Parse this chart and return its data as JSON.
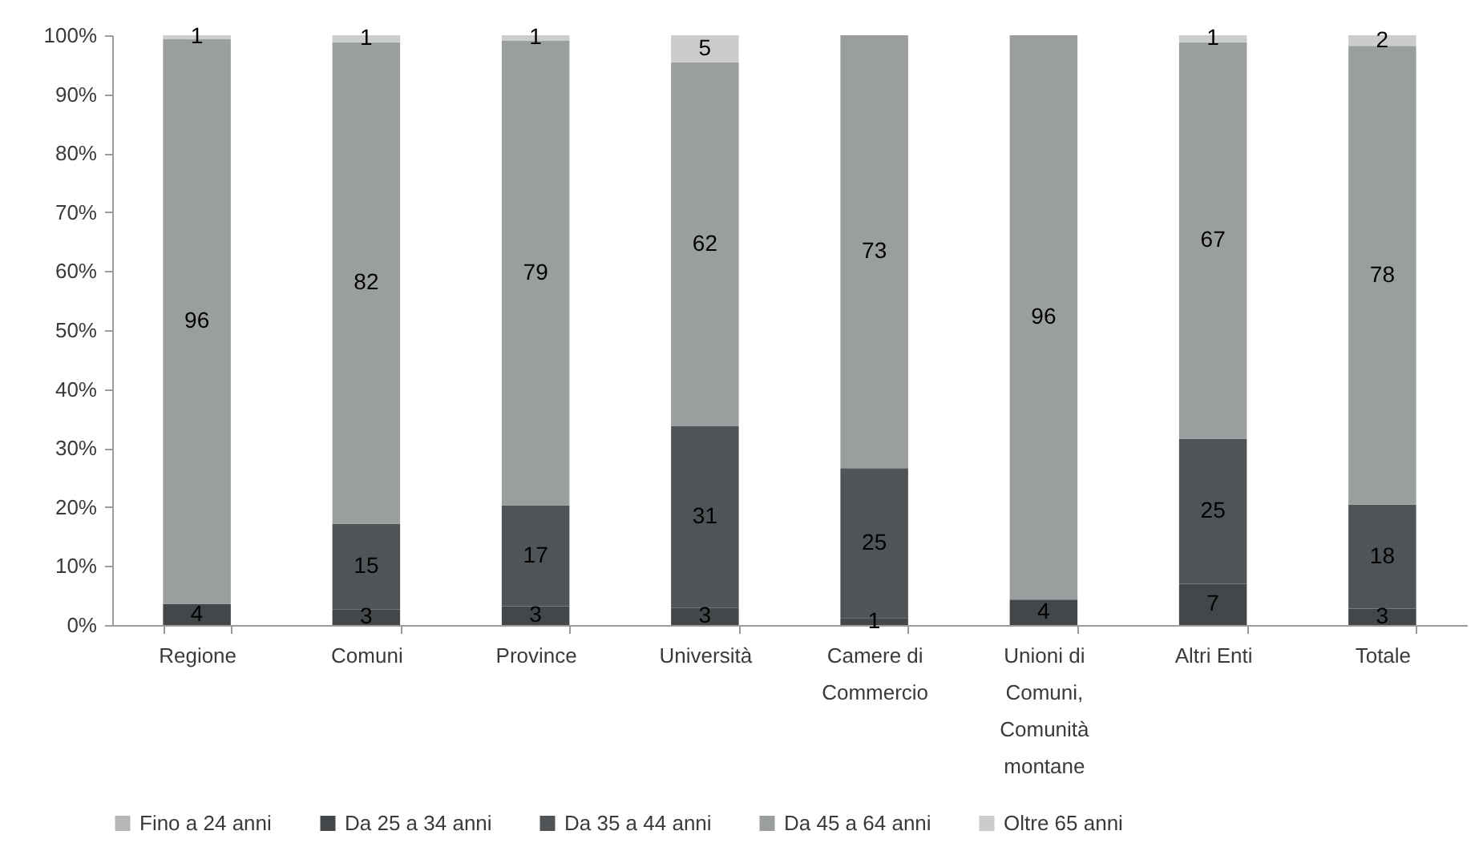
{
  "chart_data": {
    "type": "bar",
    "stacked": true,
    "legend": "bottom",
    "grid": false,
    "categories": [
      "Regione",
      "Comuni",
      "Province",
      "Università",
      "Camere di Commercio",
      "Unioni di Comuni, Comunità montane",
      "Altri Enti",
      "Totale"
    ],
    "ylim": [
      0,
      100
    ],
    "yticks": [
      {
        "value": 0,
        "label": "0%"
      },
      {
        "value": 10,
        "label": "10%"
      },
      {
        "value": 20,
        "label": "20%"
      },
      {
        "value": 30,
        "label": "30%"
      },
      {
        "value": 40,
        "label": "40%"
      },
      {
        "value": 50,
        "label": "50%"
      },
      {
        "value": 60,
        "label": "60%"
      },
      {
        "value": 70,
        "label": "70%"
      },
      {
        "value": 80,
        "label": "80%"
      },
      {
        "value": 90,
        "label": "90%"
      },
      {
        "value": 100,
        "label": "100%"
      }
    ],
    "series": [
      {
        "name": "Fino a 24 anni",
        "color": "#b5b7b7",
        "values": [
          null,
          null,
          null,
          null,
          null,
          null,
          null,
          null
        ],
        "value_labels": [
          null,
          null,
          null,
          null,
          null,
          null,
          null,
          null
        ]
      },
      {
        "name": "Da 25 a 34 anni",
        "color": "#434749",
        "values": [
          3.6,
          2.6,
          3.2,
          2.9,
          1.2,
          4.3,
          7.0,
          2.8
        ],
        "value_labels": [
          "4",
          "3",
          "3",
          "3",
          "1",
          "4",
          "7",
          "3"
        ]
      },
      {
        "name": "Da 35 a 44 anni",
        "color": "#505457",
        "values": [
          null,
          14.6,
          17.1,
          30.8,
          25.4,
          null,
          24.6,
          17.6
        ],
        "value_labels": [
          null,
          "15",
          "17",
          "31",
          "25",
          null,
          "25",
          "18"
        ]
      },
      {
        "name": "Da 45 a 64 anni",
        "color": "#9b9e9f",
        "values": [
          95.8,
          81.6,
          78.8,
          61.7,
          73.4,
          95.7,
          67.2,
          77.8
        ],
        "value_labels": [
          "96",
          "82",
          "79",
          "62",
          "73",
          "96",
          "67",
          "78"
        ]
      },
      {
        "name": "Oltre 65 anni",
        "color": "#cbcccc",
        "values": [
          0.6,
          1.2,
          0.9,
          4.6,
          null,
          null,
          1.2,
          1.8
        ],
        "value_labels": [
          "1",
          "1",
          "1",
          "5",
          null,
          null,
          "1",
          "2"
        ]
      }
    ]
  }
}
